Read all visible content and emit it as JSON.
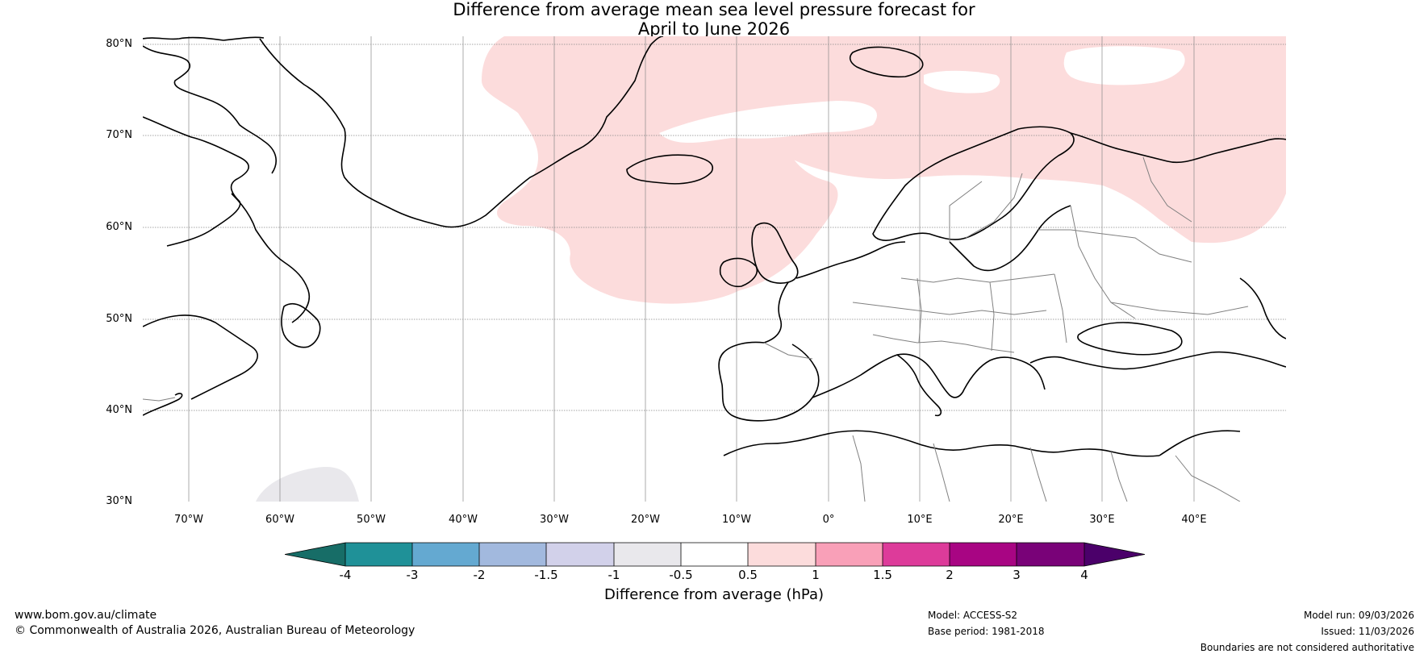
{
  "title": {
    "line1": "Difference from average mean sea level pressure forecast for",
    "line2": "April to June 2026"
  },
  "map": {
    "lat_labels": [
      "80°N",
      "70°N",
      "60°N",
      "50°N",
      "40°N",
      "30°N"
    ],
    "lon_labels": [
      "70°W",
      "60°W",
      "50°W",
      "40°W",
      "30°W",
      "20°W",
      "10°W",
      "0°",
      "10°E",
      "20°E",
      "30°E",
      "40°E"
    ],
    "colors": {
      "positive_anomaly_fill": "#fcdcdc",
      "slight_negative_fill": "#e9e8ec",
      "land_outline": "#000000",
      "border_line": "#808080",
      "gridline": "#888888"
    }
  },
  "colorbar": {
    "tick_labels": [
      "-4",
      "-3",
      "-2",
      "-1.5",
      "-1",
      "-0.5",
      "0.5",
      "1",
      "1.5",
      "2",
      "3",
      "4"
    ],
    "bin_colors": [
      "#176d67",
      "#1f9198",
      "#64a9d1",
      "#a2b9de",
      "#d2d1ea",
      "#e9e8ec",
      "#ffffff",
      "#fcdcdc",
      "#f9a0b8",
      "#dd3b9a",
      "#a80583",
      "#790278",
      "#4b006a"
    ],
    "label": "Difference from average (hPa)"
  },
  "footer": {
    "website": "www.bom.gov.au/climate",
    "copyright": "© Commonwealth of Australia 2026, Australian Bureau of Meteorology",
    "model": "Model: ACCESS-S2",
    "base_period": "Base period: 1981-2018",
    "model_run": "Model run: 09/03/2026",
    "issued": "Issued: 11/03/2026",
    "disclaimer": "Boundaries are not considered authoritative"
  }
}
